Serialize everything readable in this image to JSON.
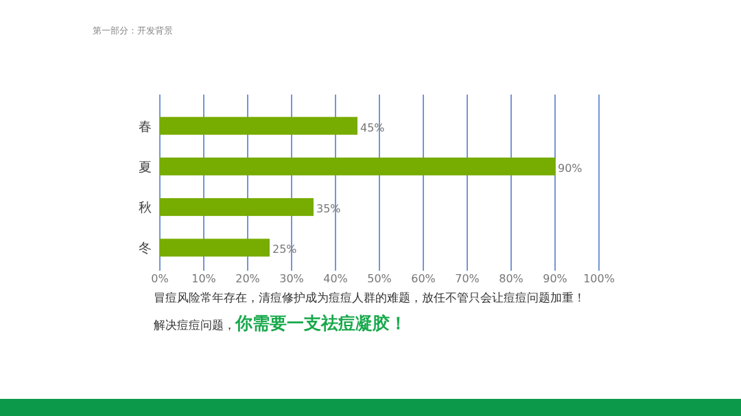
{
  "chart_data": {
    "type": "bar",
    "orientation": "horizontal",
    "title": "第一部分：开发背景",
    "categories": [
      "春",
      "夏",
      "秋",
      "冬"
    ],
    "values": [
      45,
      90,
      35,
      25
    ],
    "value_labels": [
      "45%",
      "90%",
      "35%",
      "25%"
    ],
    "color": "#77ac00",
    "xlim": [
      0,
      100
    ],
    "xticks": [
      {
        "value": 0,
        "label": "0%"
      },
      {
        "value": 10,
        "label": "10%"
      },
      {
        "value": 20,
        "label": "20%"
      },
      {
        "value": 30,
        "label": "30%"
      },
      {
        "value": 40,
        "label": "40%"
      },
      {
        "value": 50,
        "label": "50%"
      },
      {
        "value": 60,
        "label": "60%"
      },
      {
        "value": 70,
        "label": "70%"
      },
      {
        "value": 80,
        "label": "80%"
      },
      {
        "value": 90,
        "label": "90%"
      },
      {
        "value": 100,
        "label": "100%"
      }
    ],
    "grid": "x",
    "annotations": [
      "冒痘风险常年存在，清痘修护成为痘痘人群的难题，放任不管只会让痘痘问题加重！",
      "解决痘痘问题，**你需要一支祛痘凝胶！**"
    ]
  }
}
